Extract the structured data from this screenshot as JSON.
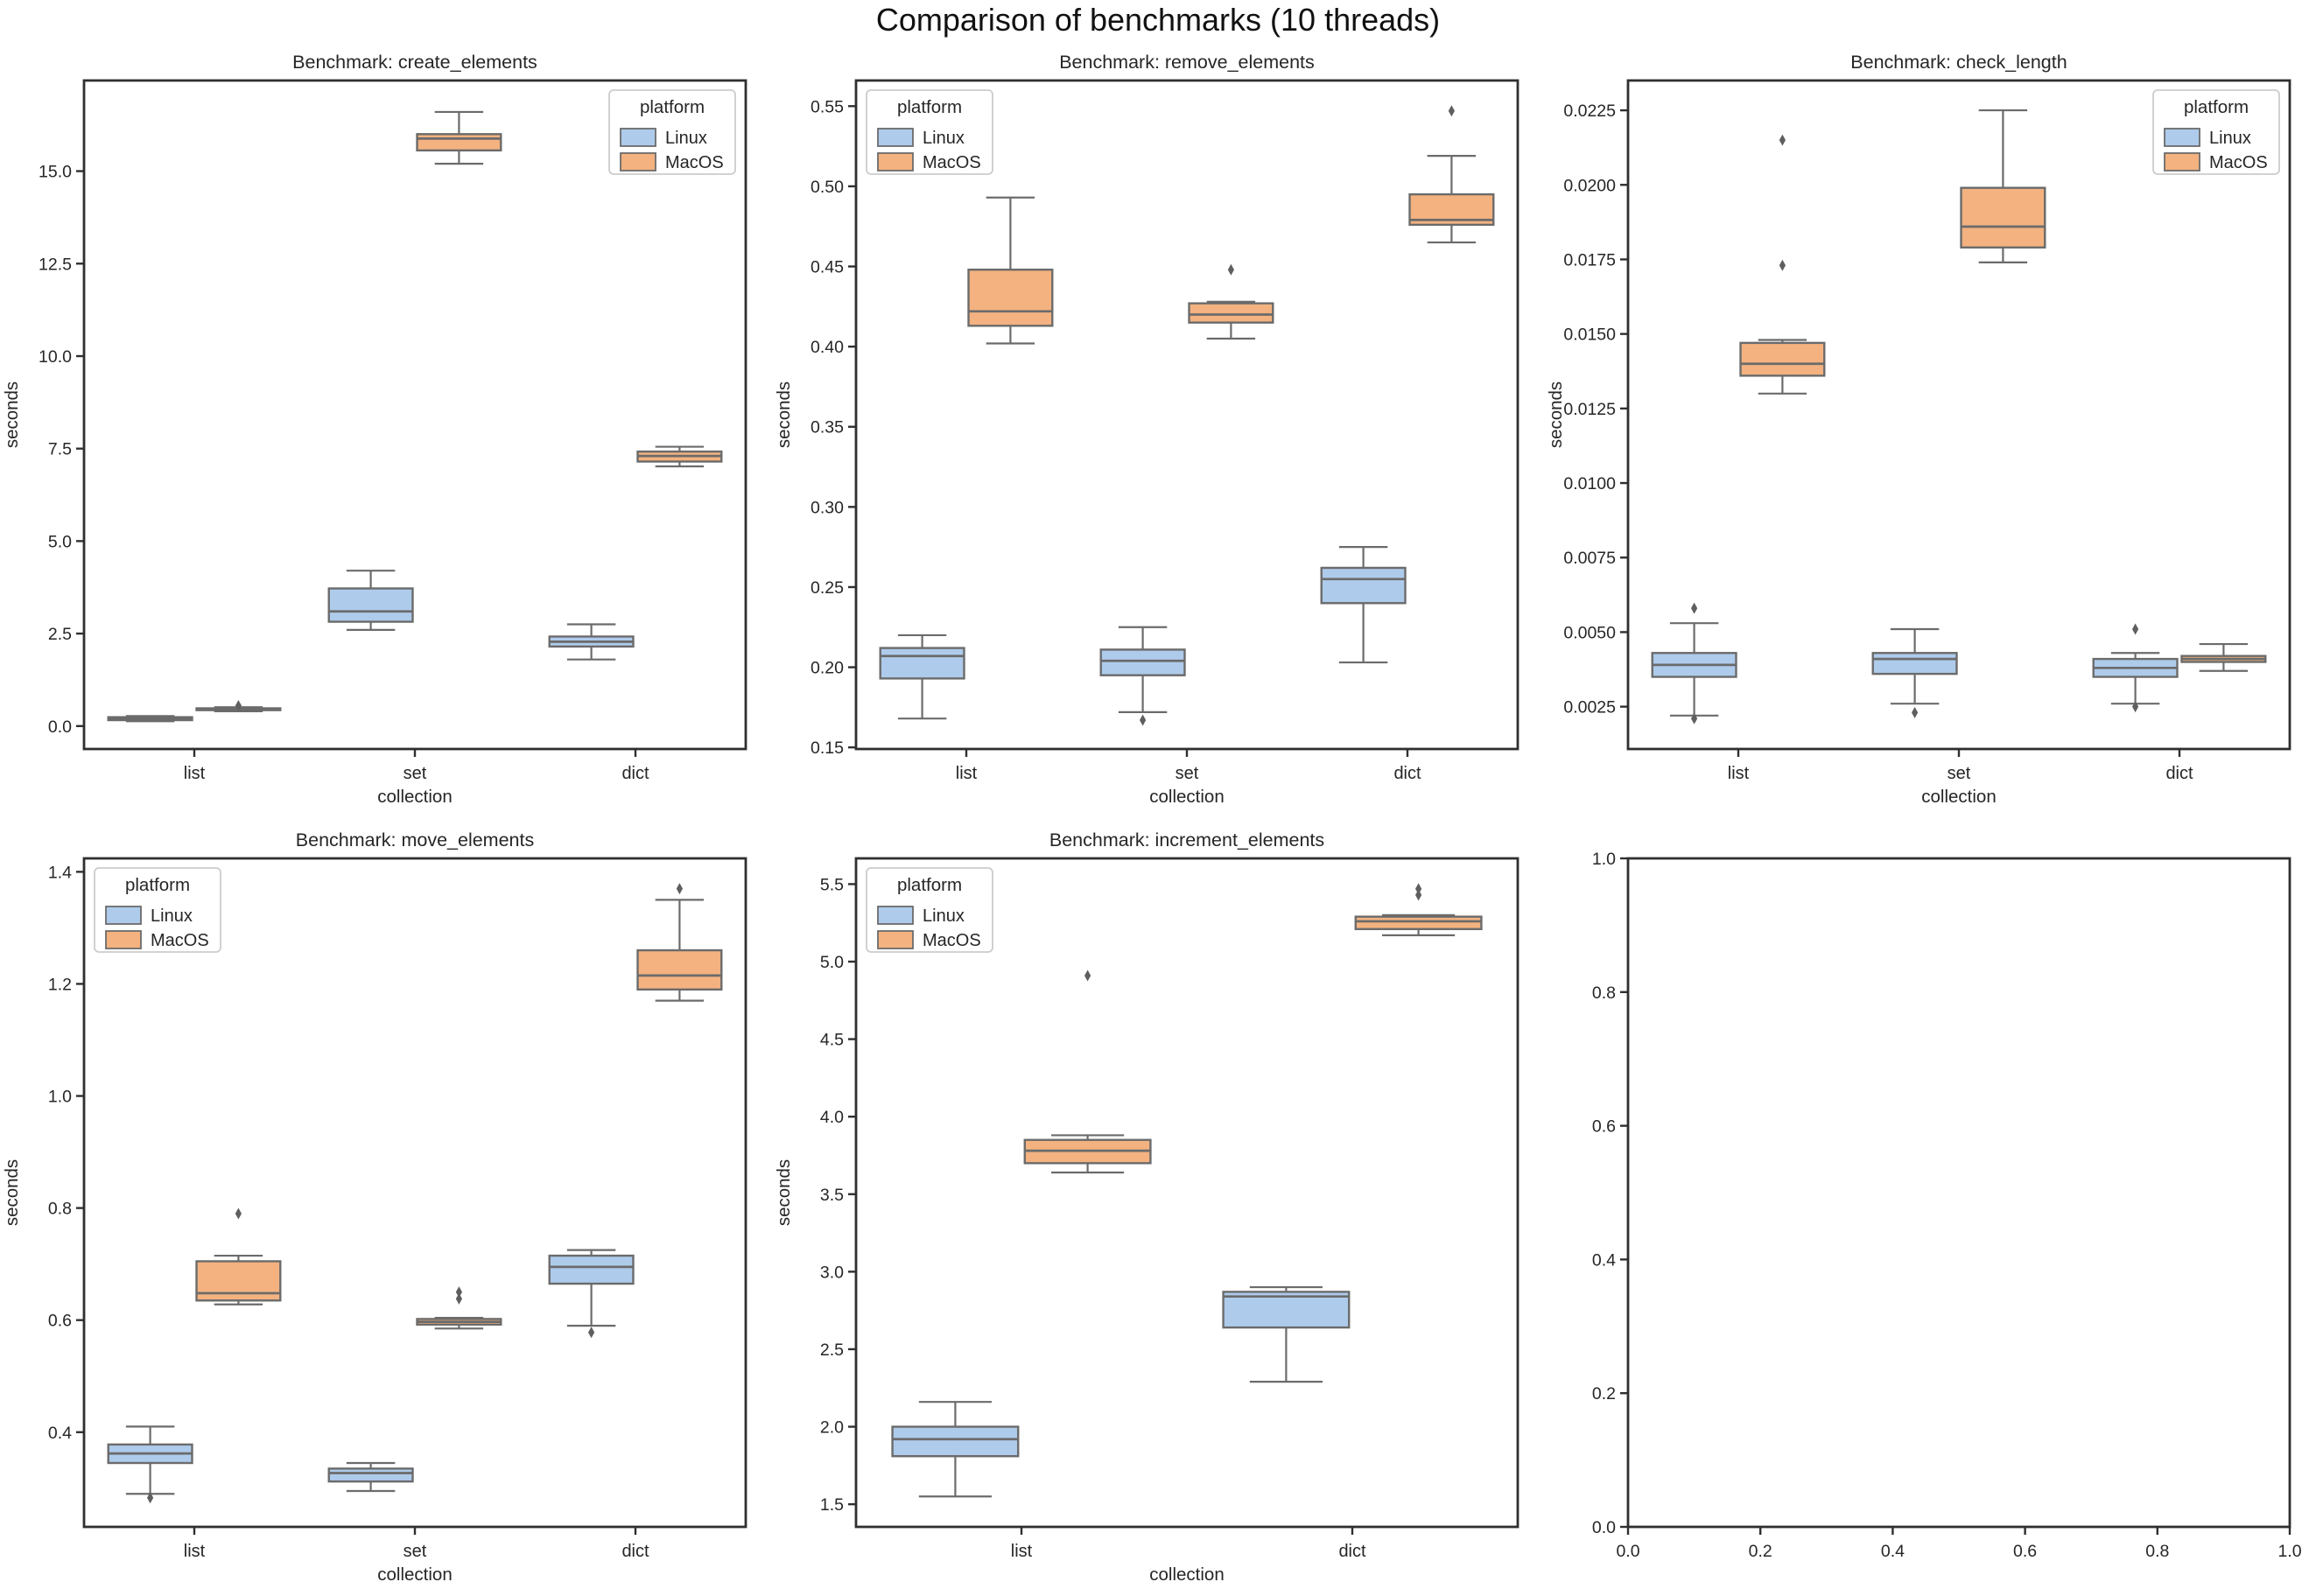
{
  "page_title": "Comparison of benchmarks (10 threads)",
  "colors": {
    "linux_fill": "#AECBEB",
    "macos_fill": "#F3B280",
    "box_edge": "#6B6B6B",
    "outlier": "#5F5F5F",
    "spine": "#2F2F2F",
    "text": "#262626",
    "legend_border": "#CCCCCC",
    "background": "#FFFFFF"
  },
  "legend": {
    "title": "platform",
    "entries": [
      {
        "label": "Linux",
        "color_key": "linux_fill"
      },
      {
        "label": "MacOS",
        "color_key": "macos_fill"
      }
    ]
  },
  "chart_data": [
    {
      "type": "box",
      "name": "create_elements",
      "title": "Benchmark: create_elements",
      "xlabel": "collection",
      "ylabel": "seconds",
      "categories": [
        "list",
        "set",
        "dict"
      ],
      "ylim": [
        -0.62,
        17.45
      ],
      "ytick_vals": [
        0.0,
        2.5,
        5.0,
        7.5,
        10.0,
        12.5,
        15.0
      ],
      "ytick_labels": [
        "0.0",
        "2.5",
        "5.0",
        "7.5",
        "10.0",
        "12.5",
        "15.0"
      ],
      "legend_pos": "top-right",
      "boxes": [
        {
          "category": "list",
          "platform": "Linux",
          "whislo": 0.13,
          "q1": 0.16,
          "med": 0.2,
          "q3": 0.24,
          "whishi": 0.27,
          "outliers": []
        },
        {
          "category": "list",
          "platform": "MacOS",
          "whislo": 0.4,
          "q1": 0.43,
          "med": 0.46,
          "q3": 0.48,
          "whishi": 0.51,
          "outliers": [
            0.55
          ]
        },
        {
          "category": "set",
          "platform": "Linux",
          "whislo": 2.6,
          "q1": 2.82,
          "med": 3.1,
          "q3": 3.72,
          "whishi": 4.2,
          "outliers": []
        },
        {
          "category": "set",
          "platform": "MacOS",
          "whislo": 15.2,
          "q1": 15.56,
          "med": 15.88,
          "q3": 16.0,
          "whishi": 16.6,
          "outliers": []
        },
        {
          "category": "dict",
          "platform": "Linux",
          "whislo": 1.8,
          "q1": 2.15,
          "med": 2.28,
          "q3": 2.42,
          "whishi": 2.75,
          "outliers": []
        },
        {
          "category": "dict",
          "platform": "MacOS",
          "whislo": 7.02,
          "q1": 7.15,
          "med": 7.3,
          "q3": 7.42,
          "whishi": 7.55,
          "outliers": []
        }
      ]
    },
    {
      "type": "box",
      "name": "remove_elements",
      "title": "Benchmark: remove_elements",
      "xlabel": "collection",
      "ylabel": "seconds",
      "categories": [
        "list",
        "set",
        "dict"
      ],
      "ylim": [
        0.149,
        0.566
      ],
      "ytick_vals": [
        0.15,
        0.2,
        0.25,
        0.3,
        0.35,
        0.4,
        0.45,
        0.5,
        0.55
      ],
      "ytick_labels": [
        "0.15",
        "0.20",
        "0.25",
        "0.30",
        "0.35",
        "0.40",
        "0.45",
        "0.50",
        "0.55"
      ],
      "legend_pos": "top-left",
      "boxes": [
        {
          "category": "list",
          "platform": "Linux",
          "whislo": 0.168,
          "q1": 0.193,
          "med": 0.207,
          "q3": 0.212,
          "whishi": 0.22,
          "outliers": []
        },
        {
          "category": "list",
          "platform": "MacOS",
          "whislo": 0.402,
          "q1": 0.413,
          "med": 0.422,
          "q3": 0.448,
          "whishi": 0.493,
          "outliers": []
        },
        {
          "category": "set",
          "platform": "Linux",
          "whislo": 0.172,
          "q1": 0.195,
          "med": 0.204,
          "q3": 0.211,
          "whishi": 0.225,
          "outliers": [
            0.167
          ]
        },
        {
          "category": "set",
          "platform": "MacOS",
          "whislo": 0.405,
          "q1": 0.415,
          "med": 0.42,
          "q3": 0.427,
          "whishi": 0.428,
          "outliers": [
            0.448
          ]
        },
        {
          "category": "dict",
          "platform": "Linux",
          "whislo": 0.203,
          "q1": 0.24,
          "med": 0.255,
          "q3": 0.262,
          "whishi": 0.275,
          "outliers": []
        },
        {
          "category": "dict",
          "platform": "MacOS",
          "whislo": 0.465,
          "q1": 0.476,
          "med": 0.479,
          "q3": 0.495,
          "whishi": 0.519,
          "outliers": [
            0.547
          ]
        }
      ]
    },
    {
      "type": "box",
      "name": "check_length",
      "title": "Benchmark: check_length",
      "xlabel": "collection",
      "ylabel": "seconds",
      "categories": [
        "list",
        "set",
        "dict"
      ],
      "ylim": [
        0.00108,
        0.0235
      ],
      "ytick_vals": [
        0.0025,
        0.005,
        0.0075,
        0.01,
        0.0125,
        0.015,
        0.0175,
        0.02,
        0.0225
      ],
      "ytick_labels": [
        "0.0025",
        "0.0050",
        "0.0075",
        "0.0100",
        "0.0125",
        "0.0150",
        "0.0175",
        "0.0200",
        "0.0225"
      ],
      "legend_pos": "top-right",
      "boxes": [
        {
          "category": "list",
          "platform": "Linux",
          "whislo": 0.0022,
          "q1": 0.0035,
          "med": 0.0039,
          "q3": 0.0043,
          "whishi": 0.0053,
          "outliers": [
            0.0058,
            0.0021
          ]
        },
        {
          "category": "list",
          "platform": "MacOS",
          "whislo": 0.013,
          "q1": 0.0136,
          "med": 0.014,
          "q3": 0.0147,
          "whishi": 0.0148,
          "outliers": [
            0.0173,
            0.0215
          ]
        },
        {
          "category": "set",
          "platform": "Linux",
          "whislo": 0.0026,
          "q1": 0.0036,
          "med": 0.0041,
          "q3": 0.0043,
          "whishi": 0.0051,
          "outliers": [
            0.0023
          ]
        },
        {
          "category": "set",
          "platform": "MacOS",
          "whislo": 0.0174,
          "q1": 0.0179,
          "med": 0.0186,
          "q3": 0.0199,
          "whishi": 0.0225,
          "outliers": []
        },
        {
          "category": "dict",
          "platform": "Linux",
          "whislo": 0.0026,
          "q1": 0.0035,
          "med": 0.0038,
          "q3": 0.0041,
          "whishi": 0.0043,
          "outliers": [
            0.0051,
            0.0025
          ]
        },
        {
          "category": "dict",
          "platform": "MacOS",
          "whislo": 0.0037,
          "q1": 0.004,
          "med": 0.0041,
          "q3": 0.0042,
          "whishi": 0.0046,
          "outliers": []
        }
      ]
    },
    {
      "type": "box",
      "name": "move_elements",
      "title": "Benchmark: move_elements",
      "xlabel": "collection",
      "ylabel": "seconds",
      "categories": [
        "list",
        "set",
        "dict"
      ],
      "ylim": [
        0.231,
        1.424
      ],
      "ytick_vals": [
        0.4,
        0.6,
        0.8,
        1.0,
        1.2,
        1.4
      ],
      "ytick_labels": [
        "0.4",
        "0.6",
        "0.8",
        "1.0",
        "1.2",
        "1.4"
      ],
      "legend_pos": "top-left",
      "boxes": [
        {
          "category": "list",
          "platform": "Linux",
          "whislo": 0.29,
          "q1": 0.345,
          "med": 0.362,
          "q3": 0.378,
          "whishi": 0.41,
          "outliers": [
            0.283
          ]
        },
        {
          "category": "list",
          "platform": "MacOS",
          "whislo": 0.628,
          "q1": 0.635,
          "med": 0.648,
          "q3": 0.705,
          "whishi": 0.715,
          "outliers": [
            0.79
          ]
        },
        {
          "category": "set",
          "platform": "Linux",
          "whislo": 0.295,
          "q1": 0.312,
          "med": 0.327,
          "q3": 0.335,
          "whishi": 0.345,
          "outliers": []
        },
        {
          "category": "set",
          "platform": "MacOS",
          "whislo": 0.585,
          "q1": 0.592,
          "med": 0.597,
          "q3": 0.602,
          "whishi": 0.604,
          "outliers": [
            0.638,
            0.65
          ]
        },
        {
          "category": "dict",
          "platform": "Linux",
          "whislo": 0.59,
          "q1": 0.665,
          "med": 0.695,
          "q3": 0.715,
          "whishi": 0.725,
          "outliers": [
            0.578
          ]
        },
        {
          "category": "dict",
          "platform": "MacOS",
          "whislo": 1.17,
          "q1": 1.19,
          "med": 1.215,
          "q3": 1.26,
          "whishi": 1.35,
          "outliers": [
            1.37
          ]
        }
      ]
    },
    {
      "type": "box",
      "name": "increment_elements",
      "title": "Benchmark: increment_elements",
      "xlabel": "collection",
      "ylabel": "seconds",
      "categories": [
        "list",
        "dict"
      ],
      "ylim": [
        1.354,
        5.666
      ],
      "ytick_vals": [
        1.5,
        2.0,
        2.5,
        3.0,
        3.5,
        4.0,
        4.5,
        5.0,
        5.5
      ],
      "ytick_labels": [
        "1.5",
        "2.0",
        "2.5",
        "3.0",
        "3.5",
        "4.0",
        "4.5",
        "5.0",
        "5.5"
      ],
      "legend_pos": "top-left",
      "boxes": [
        {
          "category": "list",
          "platform": "Linux",
          "whislo": 1.55,
          "q1": 1.81,
          "med": 1.92,
          "q3": 2.0,
          "whishi": 2.16,
          "outliers": []
        },
        {
          "category": "list",
          "platform": "MacOS",
          "whislo": 3.64,
          "q1": 3.7,
          "med": 3.78,
          "q3": 3.85,
          "whishi": 3.88,
          "outliers": [
            4.91
          ]
        },
        {
          "category": "dict",
          "platform": "Linux",
          "whislo": 2.29,
          "q1": 2.64,
          "med": 2.84,
          "q3": 2.87,
          "whishi": 2.9,
          "outliers": []
        },
        {
          "category": "dict",
          "platform": "MacOS",
          "whislo": 5.17,
          "q1": 5.21,
          "med": 5.26,
          "q3": 5.29,
          "whishi": 5.3,
          "outliers": [
            5.43,
            5.47
          ]
        }
      ]
    },
    {
      "type": "box",
      "name": "empty_axes",
      "title": "",
      "xlabel": "",
      "ylabel": "",
      "categories": [],
      "xlim": [
        0.0,
        1.0
      ],
      "ylim": [
        0.0,
        1.0
      ],
      "xtick_vals": [
        0.0,
        0.2,
        0.4,
        0.6,
        0.8,
        1.0
      ],
      "xtick_labels": [
        "0.0",
        "0.2",
        "0.4",
        "0.6",
        "0.8",
        "1.0"
      ],
      "ytick_vals": [
        0.0,
        0.2,
        0.4,
        0.6,
        0.8,
        1.0
      ],
      "ytick_labels": [
        "0.0",
        "0.2",
        "0.4",
        "0.6",
        "0.8",
        "1.0"
      ],
      "legend_pos": null,
      "boxes": []
    }
  ]
}
